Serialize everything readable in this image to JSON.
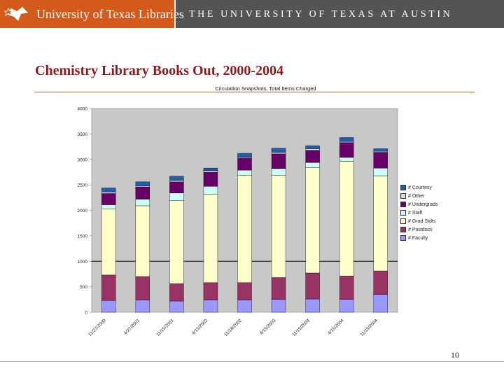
{
  "header": {
    "library_name": "University of Texas Libraries",
    "university_name": "THE UNIVERSITY OF TEXAS AT AUSTIN"
  },
  "slide": {
    "title": "Chemistry Library Books Out, 2000-2004",
    "page_number": "10"
  },
  "colors": {
    "banner_orange": "#d35a1a",
    "banner_gray": "#545454",
    "title_red": "#8e1a1e"
  },
  "chart_data": {
    "type": "bar",
    "stacked": true,
    "title": "Circulation Snapshots, Total Items Charged",
    "xlabel": "",
    "ylabel": "",
    "ylim": [
      0,
      4000
    ],
    "yticks": [
      0,
      500,
      1000,
      1500,
      2000,
      2500,
      3000,
      3500,
      4000
    ],
    "categories": [
      "11/27/2000",
      "4/27/2001",
      "11/15/2001",
      "4/15/2002",
      "11/18/2002",
      "4/15/2003",
      "11/15/2003",
      "4/15/2004",
      "11/15/2004"
    ],
    "reference_line": 1000,
    "legend_position": "right",
    "series": [
      {
        "name": "# Faculty",
        "color": "#9999ff",
        "values": [
          230,
          240,
          220,
          240,
          240,
          250,
          260,
          250,
          350
        ]
      },
      {
        "name": "# Postdocs",
        "color": "#993366",
        "values": [
          500,
          460,
          340,
          340,
          340,
          430,
          510,
          460,
          460
        ]
      },
      {
        "name": "# Grad Stdts",
        "color": "#ffffcc",
        "values": [
          1300,
          1390,
          1630,
          1740,
          2110,
          2010,
          2070,
          2250,
          1870
        ]
      },
      {
        "name": "# Staff",
        "color": "#ccffff",
        "values": [
          80,
          130,
          150,
          150,
          100,
          130,
          100,
          80,
          150
        ]
      },
      {
        "name": "# Undergrads",
        "color": "#660066",
        "values": [
          220,
          240,
          220,
          280,
          240,
          290,
          240,
          290,
          310
        ]
      },
      {
        "name": "# Other",
        "color": "#e6d6f2",
        "values": [
          30,
          20,
          30,
          30,
          20,
          30,
          30,
          20,
          20
        ]
      },
      {
        "name": "# Courtesy",
        "color": "#1f5fa8",
        "values": [
          80,
          80,
          80,
          50,
          70,
          80,
          60,
          80,
          50
        ]
      }
    ]
  }
}
